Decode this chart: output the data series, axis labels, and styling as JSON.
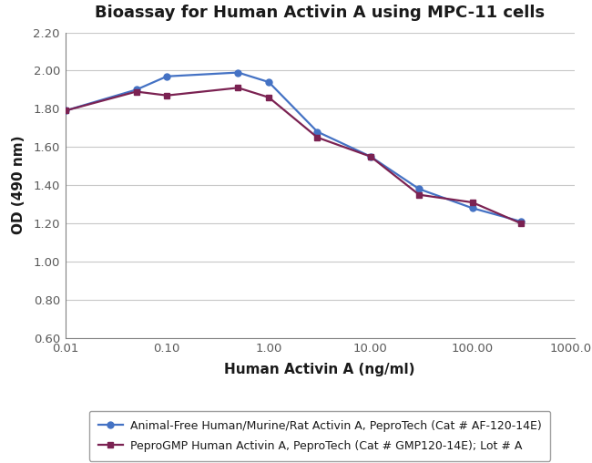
{
  "title": "Bioassay for Human Activin A using MPC-11 cells",
  "xlabel": "Human Activin A (ng/ml)",
  "ylabel": "OD (490 nm)",
  "xlim": [
    0.01,
    1000.0
  ],
  "ylim": [
    0.6,
    2.2
  ],
  "yticks": [
    0.6,
    0.8,
    1.0,
    1.2,
    1.4,
    1.6,
    1.8,
    2.0,
    2.2
  ],
  "xticks": [
    0.01,
    0.1,
    1.0,
    10.0,
    100.0,
    1000.0
  ],
  "xtick_labels": [
    "0.01",
    "0.10",
    "1.00",
    "10.00",
    "100.00",
    "1000.00"
  ],
  "series1": {
    "x": [
      0.01,
      0.05,
      0.1,
      0.5,
      1.0,
      3.0,
      10.0,
      30.0,
      100.0,
      300.0
    ],
    "y": [
      1.79,
      1.9,
      1.97,
      1.99,
      1.94,
      1.68,
      1.55,
      1.38,
      1.28,
      1.21
    ],
    "color": "#4472C4",
    "marker": "o",
    "marker_size": 5,
    "linewidth": 1.6,
    "label": "Animal-Free Human/Murine/Rat Activin A, PeproTech (Cat # AF-120-14E)"
  },
  "series2": {
    "x": [
      0.01,
      0.05,
      0.1,
      0.5,
      1.0,
      3.0,
      10.0,
      30.0,
      100.0,
      300.0
    ],
    "y": [
      1.79,
      1.89,
      1.87,
      1.91,
      1.86,
      1.65,
      1.55,
      1.35,
      1.31,
      1.2
    ],
    "color": "#7B2252",
    "marker": "s",
    "marker_size": 5,
    "linewidth": 1.6,
    "label": "PeproGMP Human Activin A, PeproTech (Cat # GMP120-14E); Lot # A"
  },
  "background_color": "#ffffff",
  "grid_color": "#c8c8c8",
  "title_fontsize": 13,
  "axis_label_fontsize": 11,
  "tick_fontsize": 9.5,
  "legend_fontsize": 9,
  "spine_color": "#808080"
}
